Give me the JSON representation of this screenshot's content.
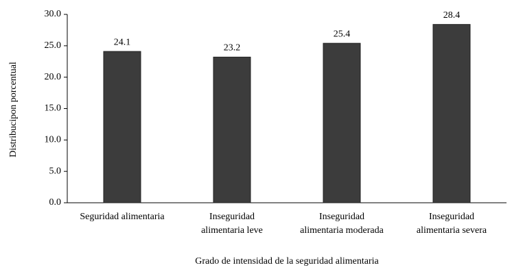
{
  "chart_data": {
    "type": "bar",
    "y_label": "Distribucipon  porcentual",
    "x_label": "Grado de intensidad  de la seguridad  alimentaria",
    "categories": [
      [
        "Seguridad alimentaria"
      ],
      [
        "Inseguridad",
        "alimentaria leve"
      ],
      [
        "Inseguridad",
        "alimentaria moderada"
      ],
      [
        "Inseguridad",
        "alimentaria severa"
      ]
    ],
    "values": [
      24.1,
      23.2,
      25.4,
      28.4
    ],
    "color": "#3c3c3c",
    "ylim": [
      0,
      30
    ],
    "yticks": [
      {
        "value": 0,
        "label": "0.0"
      },
      {
        "value": 5,
        "label": "5.0"
      },
      {
        "value": 10,
        "label": "10.0"
      },
      {
        "value": 15,
        "label": "15.0"
      },
      {
        "value": 20,
        "label": "20.0"
      },
      {
        "value": 25,
        "label": "25.0"
      },
      {
        "value": 30,
        "label": "30.0"
      }
    ],
    "grid": false
  }
}
